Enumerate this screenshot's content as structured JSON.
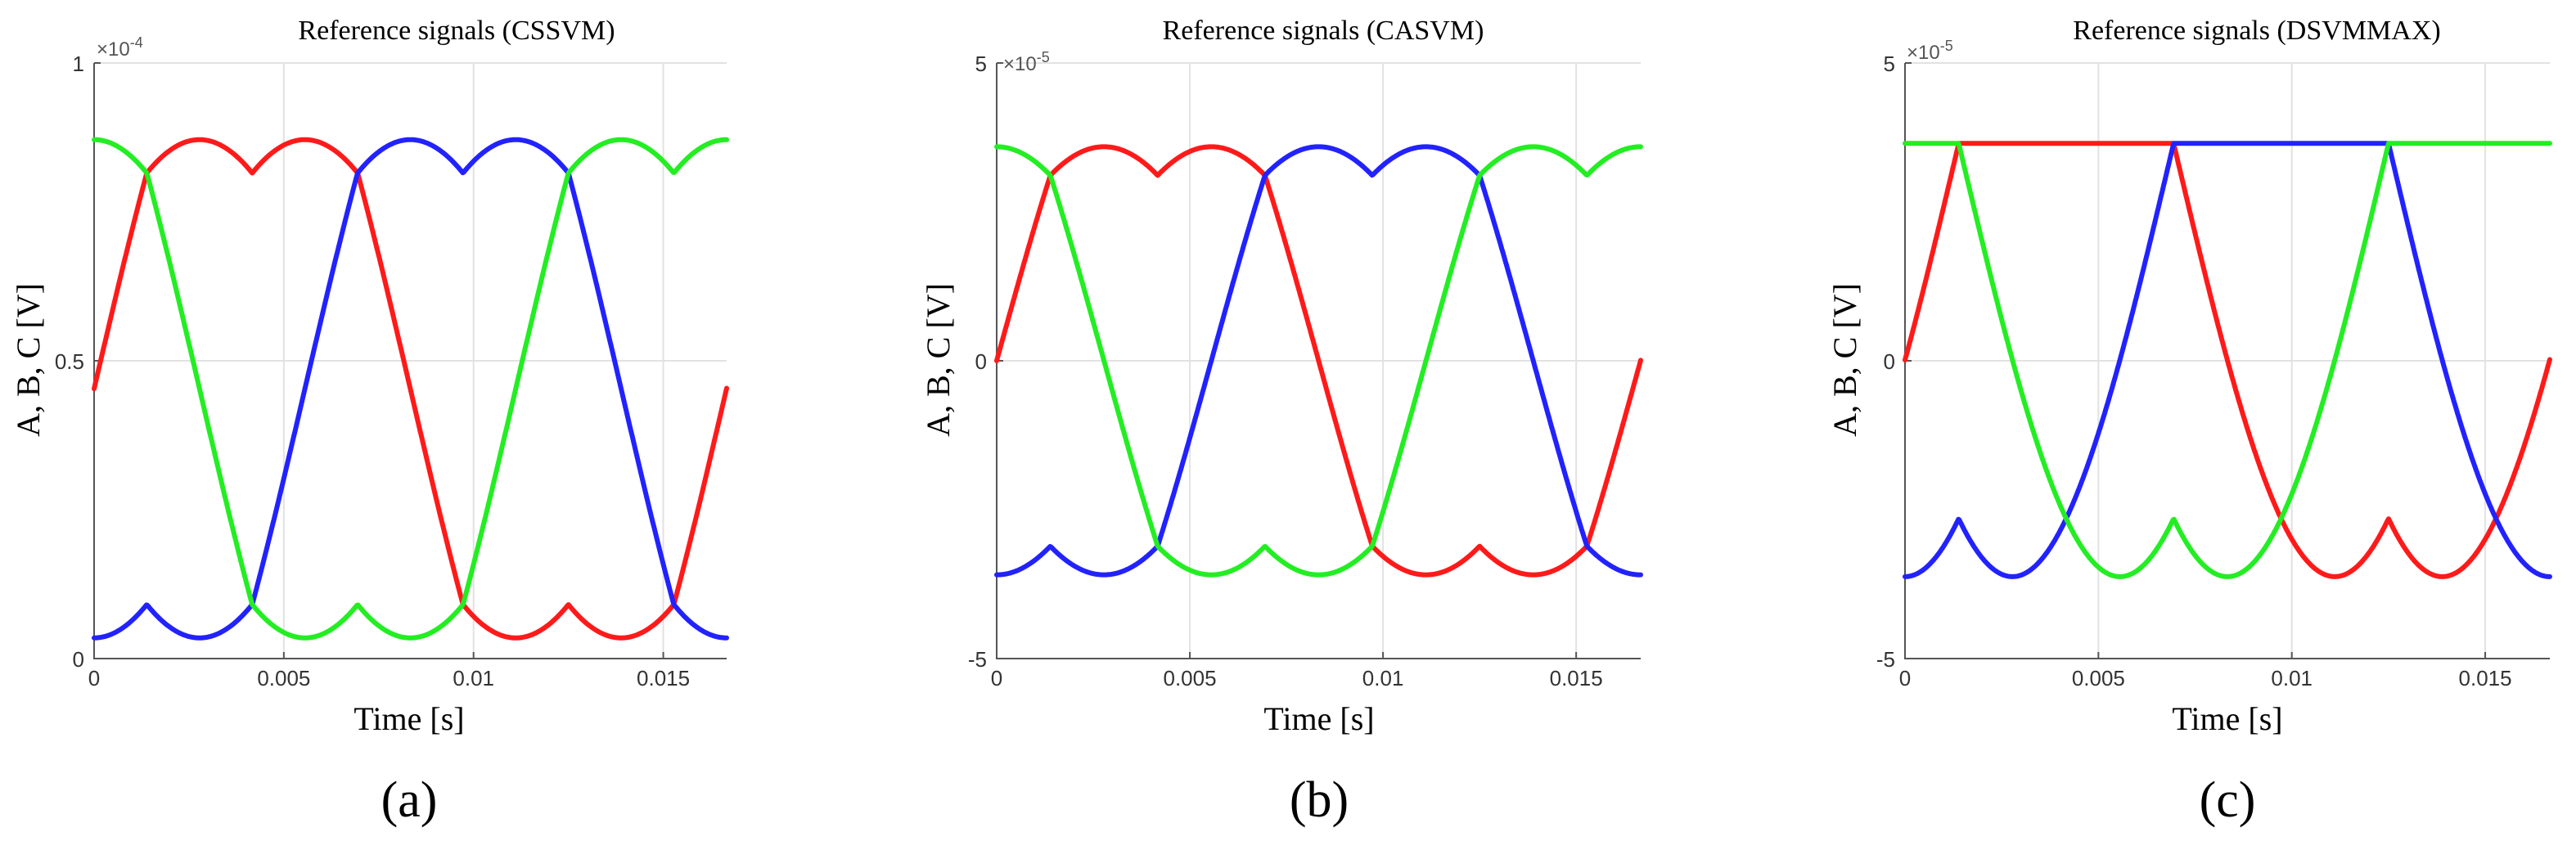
{
  "chart_data": [
    {
      "type": "line",
      "title": "Reference signals (CSSVM)",
      "xlabel": "Time [s]",
      "ylabel": "A, B, C [V]",
      "xlim": [
        0,
        0.01667
      ],
      "ylim": [
        0,
        1
      ],
      "xticks": [
        "0",
        "0.005",
        "0.01",
        "0.015"
      ],
      "yticks": [
        "0",
        "0.5",
        "1"
      ],
      "yscale_label": "×10^-4",
      "grid": true,
      "panel_label": "(a)",
      "modulation": "cssvm",
      "series": [
        {
          "name": "A",
          "color": "#ff1a1a",
          "phase_deg": 0
        },
        {
          "name": "B",
          "color": "#2222ff",
          "phase_deg": -120
        },
        {
          "name": "C",
          "color": "#22ee22",
          "phase_deg": 120
        }
      ]
    },
    {
      "type": "line",
      "title": "Reference signals (CASVM)",
      "xlabel": "Time [s]",
      "ylabel": "A, B, C [V]",
      "xlim": [
        0,
        0.01667
      ],
      "ylim": [
        -5,
        5
      ],
      "xticks": [
        "0",
        "0.005",
        "0.01",
        "0.015"
      ],
      "yticks": [
        "-5",
        "0",
        "5"
      ],
      "yscale_label": "×10^-5",
      "grid": true,
      "panel_label": "(b)",
      "modulation": "casvm",
      "series": [
        {
          "name": "A",
          "color": "#ff1a1a",
          "phase_deg": 0
        },
        {
          "name": "B",
          "color": "#2222ff",
          "phase_deg": -120
        },
        {
          "name": "C",
          "color": "#22ee22",
          "phase_deg": 120
        }
      ]
    },
    {
      "type": "line",
      "title": "Reference signals (DSVMMAX)",
      "xlabel": "Time [s]",
      "ylabel": "A, B, C [V]",
      "xlim": [
        0,
        0.01667
      ],
      "ylim": [
        -5,
        5
      ],
      "xticks": [
        "0",
        "0.005",
        "0.01",
        "0.015"
      ],
      "yticks": [
        "-5",
        "0",
        "5"
      ],
      "yscale_label": "×10^-5",
      "grid": true,
      "panel_label": "(c)",
      "modulation": "dsvmmax",
      "series": [
        {
          "name": "A",
          "color": "#ff1a1a",
          "phase_deg": 0
        },
        {
          "name": "B",
          "color": "#2222ff",
          "phase_deg": -120
        },
        {
          "name": "C",
          "color": "#22ee22",
          "phase_deg": 120
        }
      ]
    }
  ]
}
